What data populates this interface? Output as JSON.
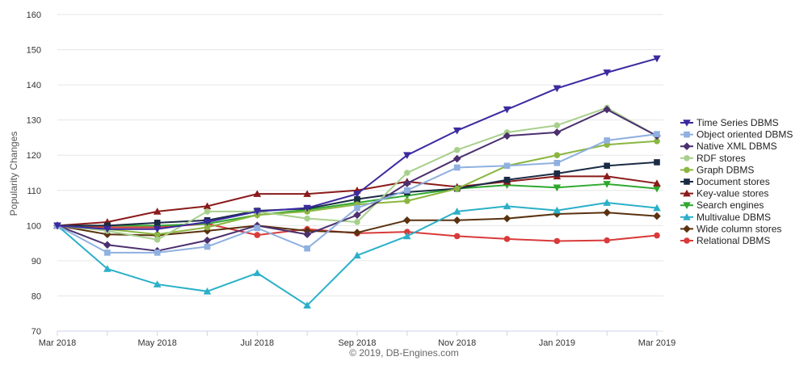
{
  "chart_data": {
    "type": "line",
    "title": "",
    "xlabel": "",
    "ylabel": "Popularity Changes",
    "credit": "© 2019, DB-Engines.com",
    "ylim": [
      70,
      160
    ],
    "yticks": [
      70,
      80,
      90,
      100,
      110,
      120,
      130,
      140,
      150,
      160
    ],
    "x": [
      "2018-03",
      "2018-04",
      "2018-05",
      "2018-06",
      "2018-07",
      "2018-08",
      "2018-09",
      "2018-10",
      "2018-11",
      "2018-12",
      "2019-01",
      "2019-02",
      "2019-03"
    ],
    "xtick_labels": [
      {
        "at": "2018-03",
        "label": "Mar 2018"
      },
      {
        "at": "2018-05",
        "label": "May 2018"
      },
      {
        "at": "2018-07",
        "label": "Jul 2018"
      },
      {
        "at": "2018-09",
        "label": "Sep 2018"
      },
      {
        "at": "2018-11",
        "label": "Nov 2018"
      },
      {
        "at": "2019-01",
        "label": "Jan 2019"
      },
      {
        "at": "2019-03",
        "label": "Mar 2019"
      }
    ],
    "grid": true,
    "legend_position": "right",
    "series": [
      {
        "name": "Time Series DBMS",
        "color": "#3a2aa0",
        "marker": "triangle-down",
        "values": [
          100,
          99,
          99,
          101,
          104,
          105,
          109,
          120,
          127,
          133,
          139,
          143.5,
          147.5
        ]
      },
      {
        "name": "Object oriented DBMS",
        "color": "#8fb0e0",
        "marker": "square",
        "values": [
          100,
          92.3,
          92.3,
          94,
          99.3,
          93.5,
          105,
          110,
          116.5,
          117,
          117.8,
          124.2,
          126
        ]
      },
      {
        "name": "Native XML DBMS",
        "color": "#4b2f6e",
        "marker": "diamond",
        "values": [
          100,
          94.5,
          92.8,
          95.8,
          100,
          97.5,
          103,
          112,
          119,
          125.5,
          126.5,
          133,
          125.5
        ]
      },
      {
        "name": "RDF stores",
        "color": "#a8d08d",
        "marker": "circle",
        "values": [
          100,
          98.5,
          96,
          104,
          104,
          102,
          101,
          115,
          121.5,
          126.5,
          128.5,
          133.5,
          125.5
        ]
      },
      {
        "name": "Graph DBMS",
        "color": "#8ab63f",
        "marker": "circle",
        "values": [
          100,
          99,
          97.5,
          99.5,
          103,
          104,
          106,
          107,
          110.5,
          117,
          120,
          123,
          124
        ]
      },
      {
        "name": "Document stores",
        "color": "#1a2b45",
        "marker": "square",
        "values": [
          100,
          100,
          100.8,
          101.5,
          104.2,
          104.8,
          107.5,
          109.5,
          110.5,
          113,
          114.8,
          117,
          118
        ]
      },
      {
        "name": "Key-value stores",
        "color": "#8b1a1a",
        "marker": "triangle-up",
        "values": [
          100,
          101,
          104,
          105.5,
          109,
          109,
          110,
          112.5,
          111,
          112.5,
          114,
          114,
          112
        ]
      },
      {
        "name": "Search engines",
        "color": "#2fa82f",
        "marker": "triangle-down",
        "values": [
          100,
          100,
          100,
          100.5,
          103,
          104.5,
          106.5,
          108.5,
          110.5,
          111.5,
          110.8,
          111.8,
          110.5
        ]
      },
      {
        "name": "Multivalue DBMS",
        "color": "#2ab0c8",
        "marker": "triangle-up",
        "values": [
          100,
          87.7,
          83.3,
          81.3,
          86.5,
          77.3,
          91.5,
          97,
          104,
          105.5,
          104.3,
          106.5,
          105
        ]
      },
      {
        "name": "Wide column stores",
        "color": "#5a3210",
        "marker": "diamond",
        "values": [
          100,
          97.5,
          97.2,
          98.5,
          100,
          98.5,
          98,
          101.5,
          101.5,
          102,
          103.3,
          103.7,
          102.7
        ]
      },
      {
        "name": "Relational DBMS",
        "color": "#d93a3a",
        "marker": "circle",
        "values": [
          100,
          99.5,
          99.5,
          100.5,
          97.3,
          99,
          97.8,
          98.2,
          97,
          96.2,
          95.6,
          95.8,
          97.2
        ]
      }
    ]
  }
}
